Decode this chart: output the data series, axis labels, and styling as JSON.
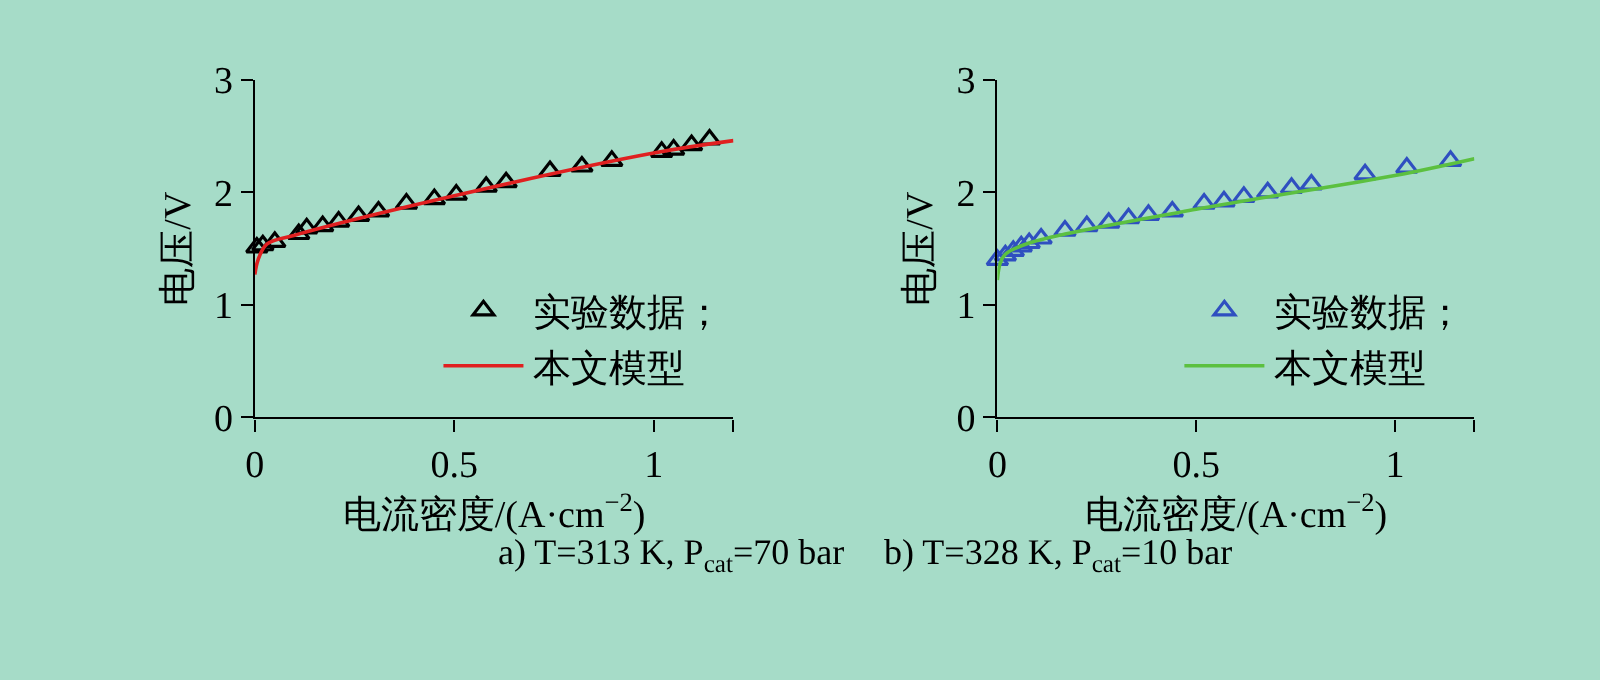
{
  "chart_data": [
    {
      "type": "scatter",
      "xlabel": "电流密度/(A·cm$^{−2}$)",
      "ylabel": "电压/V",
      "annotations": [
        "a) T=313 K, P$_{cat}$=70 bar"
      ],
      "xlim": [
        0,
        1.2
      ],
      "ylim": [
        0,
        3
      ],
      "xticks": [
        0,
        0.5,
        1,
        {
          "value": 1.2,
          "label": null
        }
      ],
      "yticks": [
        0,
        1,
        2,
        3
      ],
      "grid": false,
      "legend": "bottom right",
      "series": [
        {
          "name": "实验数据；",
          "marker": "triangle",
          "color": "#000000",
          "x": [
            0.005,
            0.02,
            0.05,
            0.11,
            0.13,
            0.17,
            0.21,
            0.26,
            0.31,
            0.38,
            0.45,
            0.505,
            0.58,
            0.63,
            0.74,
            0.82,
            0.895,
            1.02,
            1.05,
            1.095,
            1.14
          ],
          "values": [
            1.51,
            1.53,
            1.56,
            1.63,
            1.68,
            1.7,
            1.74,
            1.79,
            1.83,
            1.9,
            1.94,
            1.98,
            2.05,
            2.09,
            2.19,
            2.23,
            2.28,
            2.36,
            2.38,
            2.42,
            2.47
          ]
        },
        {
          "name": "本文模型",
          "type": "line",
          "marker": "none",
          "color": "#e02020",
          "x": [
            0,
            0.008,
            0.03,
            0.1,
            0.5,
            1,
            1.2
          ],
          "values": [
            1.27,
            1.4,
            1.54,
            1.62,
            1.97,
            2.35,
            2.46
          ]
        }
      ]
    },
    {
      "type": "scatter",
      "xlabel": "电流密度/(A·cm$^{−2}$)",
      "ylabel": "电压/V",
      "annotations": [
        "b) T=328 K, P$_{cat}$=10 bar"
      ],
      "xlim": [
        0,
        1.2
      ],
      "ylim": [
        0,
        3
      ],
      "xticks": [
        0,
        0.5,
        1,
        {
          "value": 1.2,
          "label": null
        }
      ],
      "yticks": [
        0,
        1,
        2,
        3
      ],
      "grid": false,
      "legend": "bottom right",
      "series": [
        {
          "name": "实验数据；",
          "marker": "triangle",
          "color": "#2f4fc0",
          "x": [
            0,
            0.02,
            0.04,
            0.06,
            0.08,
            0.11,
            0.17,
            0.225,
            0.28,
            0.33,
            0.38,
            0.44,
            0.52,
            0.57,
            0.62,
            0.68,
            0.74,
            0.79,
            0.925,
            1.03,
            1.14
          ],
          "values": [
            1.4,
            1.44,
            1.48,
            1.52,
            1.55,
            1.59,
            1.66,
            1.7,
            1.73,
            1.77,
            1.8,
            1.83,
            1.9,
            1.92,
            1.96,
            2.0,
            2.04,
            2.07,
            2.16,
            2.22,
            2.28
          ]
        },
        {
          "name": "本文模型",
          "type": "line",
          "marker": "none",
          "color": "#5cc040",
          "x": [
            0,
            0.007,
            0.02,
            0.08,
            0.5,
            1,
            1.2
          ],
          "values": [
            1.22,
            1.37,
            1.45,
            1.55,
            1.85,
            2.15,
            2.3
          ]
        }
      ]
    }
  ]
}
